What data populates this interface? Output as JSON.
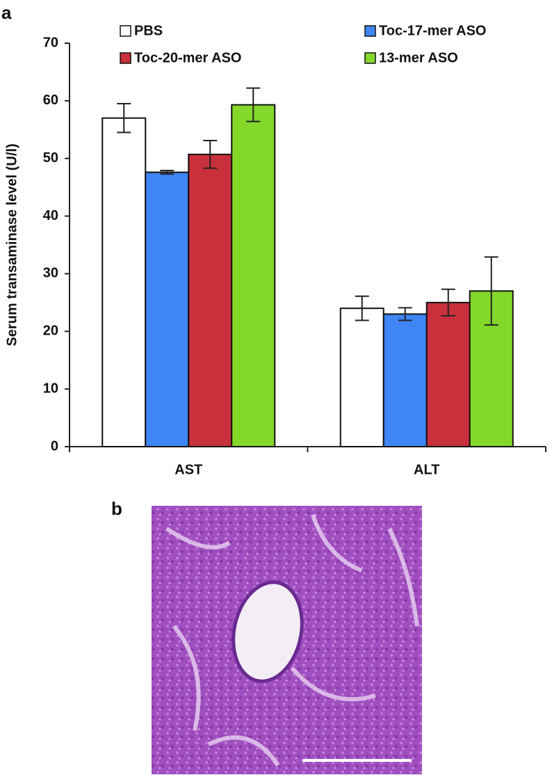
{
  "panel_labels": [
    "a",
    "b"
  ],
  "chart_data": {
    "type": "bar",
    "y_label": "Serum transaminase level (U/l)",
    "categories": [
      "AST",
      "ALT"
    ],
    "series": [
      {
        "name": "PBS",
        "color": "#ffffff",
        "values": [
          57,
          24
        ],
        "errors": [
          2.5,
          2.1
        ]
      },
      {
        "name": "Toc-17-mer ASO",
        "color": "#3f86f4",
        "values": [
          47.6,
          23
        ],
        "errors": [
          0.3,
          1.1
        ]
      },
      {
        "name": "Toc-20-mer ASO",
        "color": "#c8303c",
        "values": [
          50.7,
          25
        ],
        "errors": [
          2.4,
          2.3
        ]
      },
      {
        "name": "13-mer ASO",
        "color": "#84d82a",
        "values": [
          59.3,
          27
        ],
        "errors": [
          2.9,
          5.9
        ]
      }
    ],
    "ylim": [
      0,
      70
    ],
    "yticks": [
      0,
      10,
      20,
      30,
      40,
      50,
      60,
      70
    ],
    "grid": false
  }
}
